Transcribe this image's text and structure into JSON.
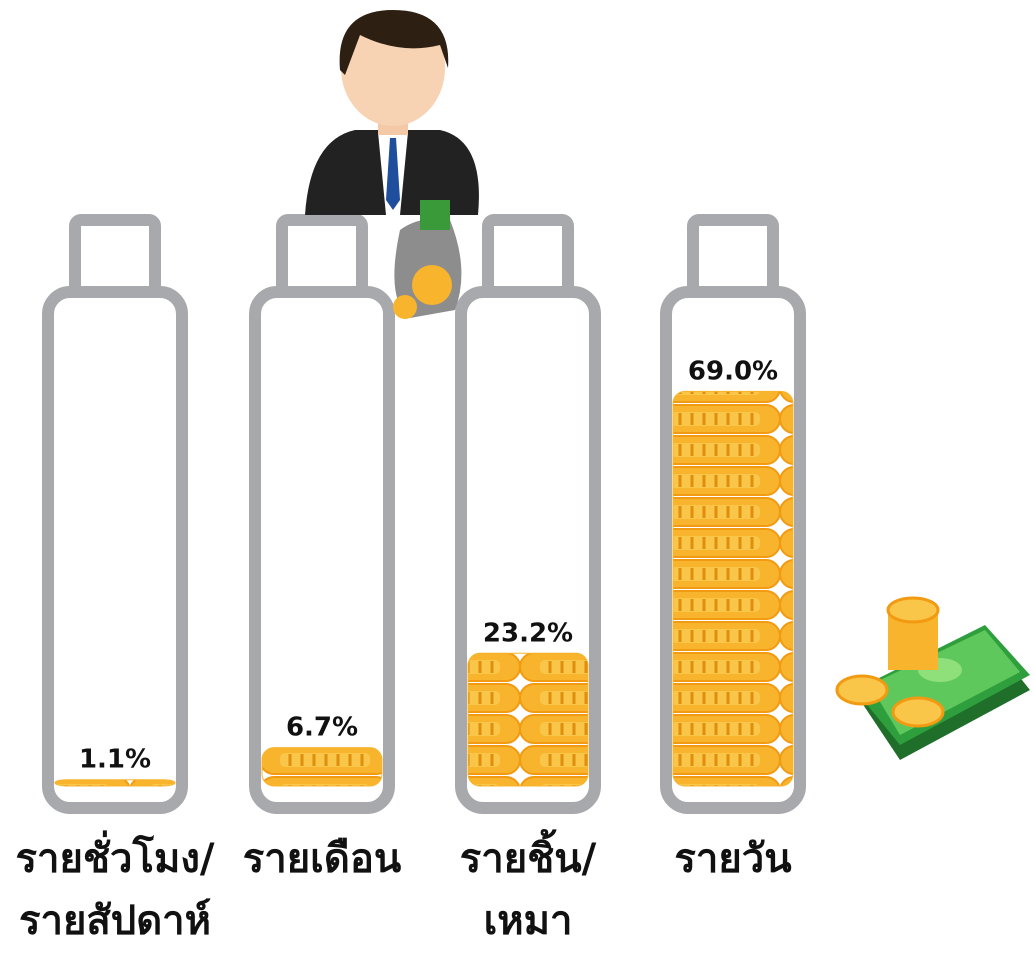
{
  "chart_data": {
    "type": "bar",
    "categories": [
      "รายชั่วโมง/\nรายสัปดาห์",
      "รายเดือน",
      "รายชิ้น/\nเหมา",
      "รายวัน"
    ],
    "values": [
      1.1,
      6.7,
      23.2,
      69.0
    ],
    "value_labels": [
      "1.1%",
      "6.7%",
      "23.2%",
      "69.0%"
    ],
    "color": "#f7b42c"
  }
}
